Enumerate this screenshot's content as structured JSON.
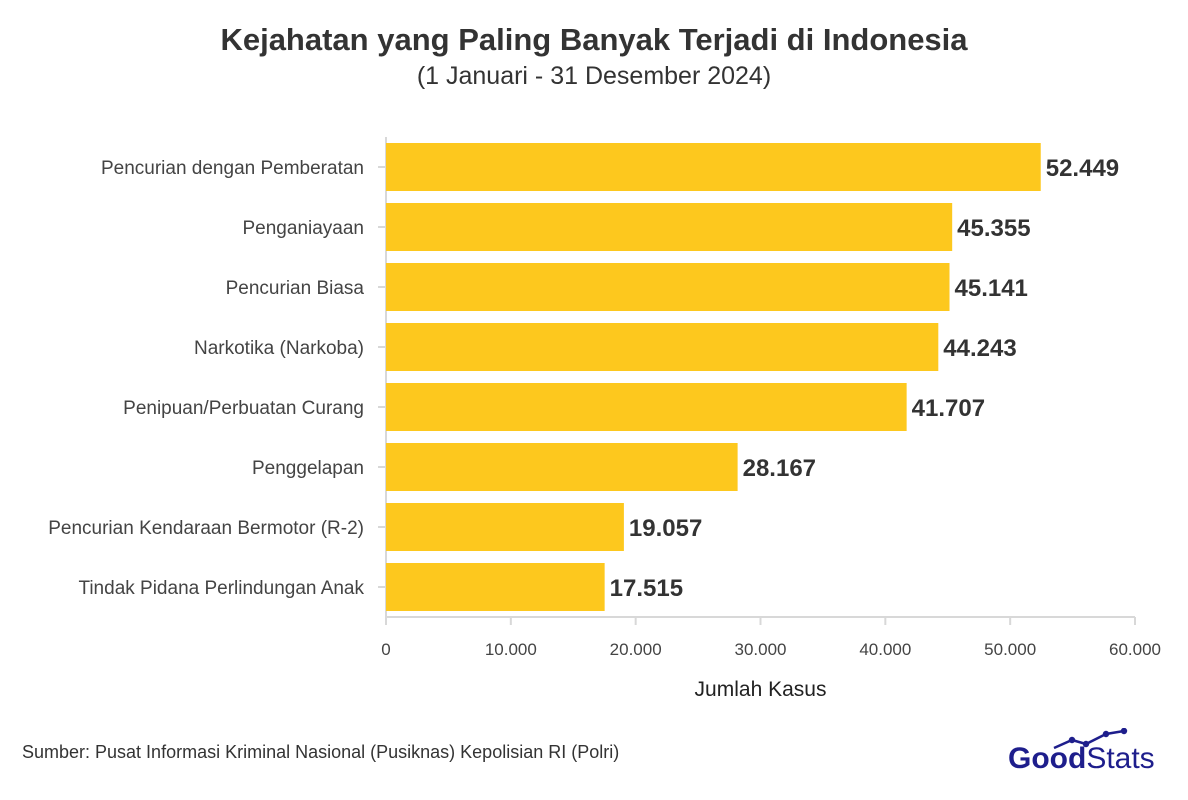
{
  "title": "Kejahatan yang Paling Banyak Terjadi di Indonesia",
  "subtitle": "(1 Januari - 31 Desember 2024)",
  "source": "Sumber: Pusat Informasi Kriminal Nasional (Pusiknas) Kepolisian RI (Polri)",
  "logo": {
    "part1": "Good",
    "part2": "Stats",
    "icon": "trend-line-icon"
  },
  "colors": {
    "bar": "#FDC81E",
    "axis": "#D8D8D8",
    "text": "#333333",
    "logo": "#1E1E8C"
  },
  "chart_data": {
    "type": "bar",
    "orientation": "horizontal",
    "categories": [
      "Pencurian dengan Pemberatan",
      "Penganiayaan",
      "Pencurian Biasa",
      "Narkotika (Narkoba)",
      "Penipuan/Perbuatan Curang",
      "Penggelapan",
      "Pencurian Kendaraan Bermotor (R-2)",
      "Tindak Pidana Perlindungan Anak"
    ],
    "values": [
      52449,
      45355,
      45141,
      44243,
      41707,
      28167,
      19057,
      17515
    ],
    "value_labels": [
      "52.449",
      "45.355",
      "45.141",
      "44.243",
      "41.707",
      "28.167",
      "19.057",
      "17.515"
    ],
    "xlabel": "Jumlah Kasus",
    "xlim": [
      0,
      60000
    ],
    "xticks": [
      0,
      10000,
      20000,
      30000,
      40000,
      50000,
      60000
    ],
    "xtick_labels": [
      "0",
      "10.000",
      "20.000",
      "30.000",
      "40.000",
      "50.000",
      "60.000"
    ],
    "grid": false
  }
}
